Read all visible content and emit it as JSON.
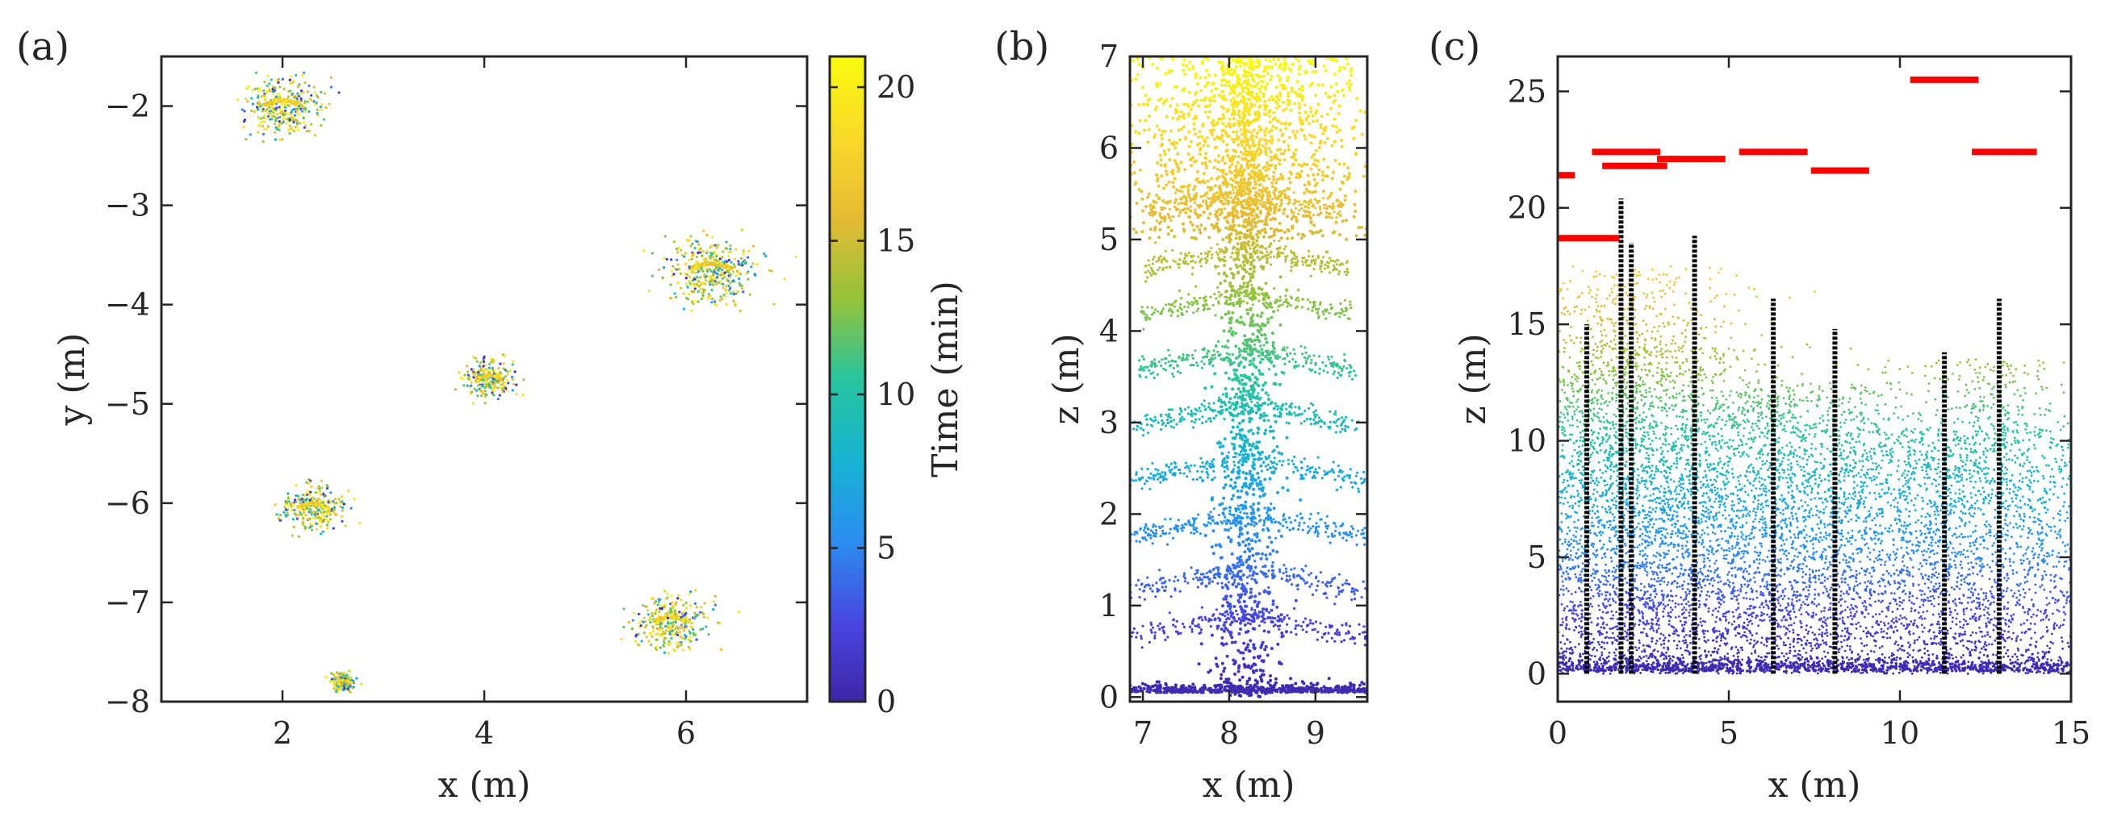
{
  "chart_data": [
    {
      "panel": "(a)",
      "type": "scatter",
      "xlabel": "x (m)",
      "ylabel": "y (m)",
      "xlim": [
        0.8,
        7.2
      ],
      "ylim": [
        -8,
        -1.5
      ],
      "xticks": [
        2,
        4,
        6
      ],
      "yticks": [
        -8,
        -7,
        -6,
        -5,
        -4,
        -3,
        -2
      ],
      "color_encoding": "time",
      "clusters": [
        {
          "x": 2.0,
          "y": -2.0,
          "spread": 0.35,
          "arc": "arch"
        },
        {
          "x": 6.25,
          "y": -3.65,
          "spread": 0.4,
          "arc": "arch"
        },
        {
          "x": 4.05,
          "y": -4.75,
          "spread": 0.22,
          "arc": "arch"
        },
        {
          "x": 2.3,
          "y": -6.05,
          "spread": 0.28,
          "arc": "arch"
        },
        {
          "x": 5.85,
          "y": -7.2,
          "spread": 0.32,
          "arc": "arch"
        },
        {
          "x": 2.6,
          "y": -7.8,
          "spread": 0.1,
          "arc": "arch"
        }
      ],
      "colorbar": {
        "label": "Time (min)",
        "lim": [
          0,
          21
        ],
        "ticks": [
          0,
          5,
          10,
          15,
          20
        ],
        "colormap": [
          "#3e26a8",
          "#4845e0",
          "#2b8ef0",
          "#17b2d4",
          "#28c59e",
          "#91c33b",
          "#e6bb34",
          "#f9d82a",
          "#f9fb0e"
        ]
      }
    },
    {
      "panel": "(b)",
      "type": "scatter",
      "xlabel": "x (m)",
      "ylabel": "z (m)",
      "xlim": [
        6.85,
        9.6
      ],
      "ylim": [
        -0.05,
        7
      ],
      "xticks": [
        7,
        8,
        9
      ],
      "yticks": [
        0,
        1,
        2,
        3,
        4,
        5,
        6,
        7
      ],
      "trunk_x": 8.2,
      "branch_z": [
        0.9,
        1.4,
        2.0,
        2.6,
        3.2,
        3.8,
        4.4,
        4.9,
        5.5
      ]
    },
    {
      "panel": "(c)",
      "type": "scatter",
      "xlabel": "x (m)",
      "ylabel": "z (m)",
      "xlim": [
        0,
        15
      ],
      "ylim": [
        -1.2,
        26.5
      ],
      "xticks": [
        0,
        5,
        10,
        15
      ],
      "yticks": [
        0,
        5,
        10,
        15,
        20,
        25
      ],
      "stems": [
        {
          "x": 0.85,
          "top": 15.0,
          "canopy": 14.5
        },
        {
          "x": 1.85,
          "top": 20.4,
          "canopy": 16.5
        },
        {
          "x": 2.15,
          "top": 18.5,
          "canopy": 17.5
        },
        {
          "x": 4.0,
          "top": 18.8,
          "canopy": 14.0
        },
        {
          "x": 6.3,
          "top": 16.1,
          "canopy": 12.0
        },
        {
          "x": 8.1,
          "top": 14.8,
          "canopy": 12.5
        },
        {
          "x": 11.3,
          "top": 13.8,
          "canopy": 10.5
        },
        {
          "x": 12.9,
          "top": 16.1,
          "canopy": 13.5
        }
      ],
      "red_segments": [
        {
          "x0": 0,
          "x1": 0.5,
          "y": 21.4
        },
        {
          "x0": 0,
          "x1": 1.8,
          "y": 18.7
        },
        {
          "x0": 1.0,
          "x1": 3.0,
          "y": 22.4
        },
        {
          "x0": 1.3,
          "x1": 3.2,
          "y": 21.8
        },
        {
          "x0": 2.9,
          "x1": 4.9,
          "y": 22.1
        },
        {
          "x0": 5.3,
          "x1": 7.3,
          "y": 22.4
        },
        {
          "x0": 7.4,
          "x1": 9.1,
          "y": 21.6
        },
        {
          "x0": 10.3,
          "x1": 12.3,
          "y": 25.5
        },
        {
          "x0": 12.1,
          "x1": 14.0,
          "y": 22.4
        }
      ],
      "stem_color": "#000000",
      "segment_color": "#ff0000"
    }
  ]
}
